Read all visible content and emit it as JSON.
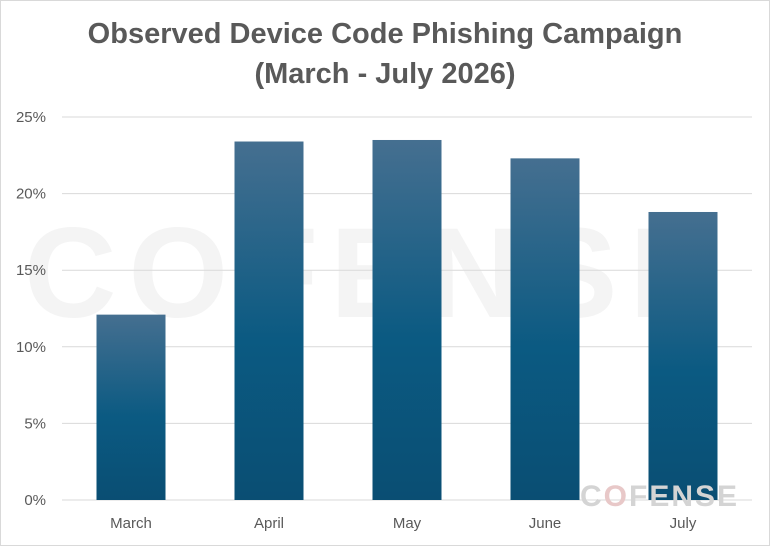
{
  "chart_data": {
    "type": "bar",
    "title": "Observed Device Code Phishing Campaign (March - July 2026)",
    "title_lines": [
      "Observed Device Code Phishing Campaign",
      "(March - July 2026)"
    ],
    "categories": [
      "March",
      "April",
      "May",
      "June",
      "July"
    ],
    "values": [
      12.1,
      23.4,
      23.5,
      22.3,
      18.8
    ],
    "yticks": [
      "0%",
      "5%",
      "10%",
      "15%",
      "20%",
      "25%"
    ],
    "ylim": [
      0,
      25
    ],
    "xlabel": "",
    "ylabel": "",
    "grid": true,
    "legend": "none",
    "colors": {
      "bar_top": "#456f90",
      "bar_bottom": "#0a4e73",
      "grid": "#d9d9d9",
      "text": "#595959"
    }
  },
  "watermark": {
    "text": "COFENSE"
  },
  "logo": {
    "text": "COFENSE"
  }
}
